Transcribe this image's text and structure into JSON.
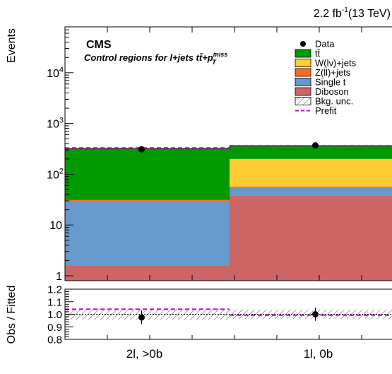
{
  "lumi_label": "2.2 fb",
  "lumi_exp": "-1",
  "lumi_energy": "(13 TeV)",
  "cms_label": "CMS",
  "subtitle": "Control regions for l+jets tt̄+p",
  "subtitle_sup": "miss",
  "subtitle_sub": "T",
  "chart_data": [
    {
      "type": "bar",
      "stacked": true,
      "ylabel": "Events",
      "yscale": "log",
      "ylim": [
        0.8,
        80000
      ],
      "yticks": [
        {
          "value": 1,
          "label": "1"
        },
        {
          "value": 10,
          "label": "10"
        },
        {
          "value": 100,
          "label": "10",
          "exp": "2"
        },
        {
          "value": 1000,
          "label": "10",
          "exp": "3"
        },
        {
          "value": 10000,
          "label": "10",
          "exp": "4"
        }
      ],
      "categories": [
        "2l, >0b",
        "1l, 0b"
      ],
      "series": [
        {
          "name": "Diboson",
          "color": "#cc6666",
          "values": [
            1.6,
            38
          ]
        },
        {
          "name": "Single t",
          "color": "#6699cc",
          "values": [
            28,
            17
          ]
        },
        {
          "name": "Z(ll)+jets",
          "color": "#ff6a1a",
          "values": [
            1.5,
            2
          ]
        },
        {
          "name": "W(lν)+jets",
          "color": "#ffcc33",
          "values": [
            0,
            143
          ]
        },
        {
          "name": "tt̄",
          "color": "#009900",
          "values": [
            289,
            165
          ]
        }
      ],
      "data_points": [
        {
          "category": "2l, >0b",
          "value": 310,
          "err": 18
        },
        {
          "category": "1l, 0b",
          "value": 370,
          "err": 19
        }
      ],
      "prefit": [
        330,
        365
      ],
      "legend": {
        "placement": "top-right",
        "entries": [
          {
            "label": "Data",
            "style": "marker"
          },
          {
            "label": "tt̄",
            "style": "box",
            "color": "#009900"
          },
          {
            "label": "W(lν)+jets",
            "style": "box",
            "color": "#ffcc33"
          },
          {
            "label": "Z(ll)+jets",
            "style": "box",
            "color": "#ff6a1a"
          },
          {
            "label": "Single t",
            "style": "box",
            "color": "#6699cc"
          },
          {
            "label": "Diboson",
            "style": "box",
            "color": "#cc6666"
          },
          {
            "label": "Bkg. unc.",
            "style": "hatch"
          },
          {
            "label": "Prefit",
            "style": "dash",
            "color": "#cc00cc"
          }
        ]
      }
    },
    {
      "type": "scatter",
      "ylabel": "Obs / Fitted",
      "ylim": [
        0.8,
        1.2
      ],
      "yticks": [
        {
          "value": 0.8,
          "label": "0.8"
        },
        {
          "value": 0.9,
          "label": "0.9"
        },
        {
          "value": 1.0,
          "label": "1.0"
        },
        {
          "value": 1.1,
          "label": "1.1"
        },
        {
          "value": 1.2,
          "label": "1.2"
        }
      ],
      "categories": [
        "2l, >0b",
        "1l, 0b"
      ],
      "ratio": [
        {
          "category": "2l, >0b",
          "value": 0.975,
          "err": 0.055
        },
        {
          "category": "1l, 0b",
          "value": 1.0,
          "err": 0.052
        }
      ],
      "unc_band": [
        0.045,
        0.038
      ],
      "prefit_ratio": [
        1.04,
        0.993
      ],
      "reference_line": 1.0
    }
  ]
}
